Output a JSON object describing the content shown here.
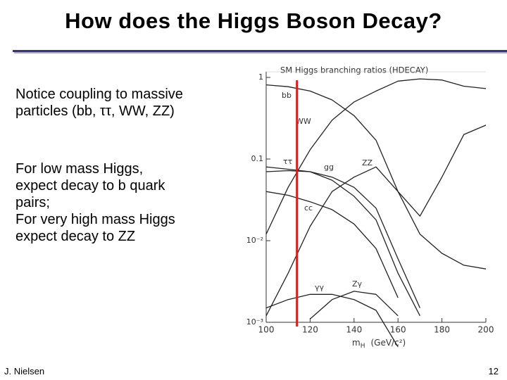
{
  "header": {
    "title": "How does the Higgs Boson Decay?"
  },
  "body": {
    "paragraph_1": [
      "Notice coupling to massive",
      "particles (bb, ττ, WW, ZZ)"
    ],
    "paragraph_2": [
      "For low mass Higgs,",
      "expect decay to b quark",
      "pairs;",
      "For very high mass Higgs",
      "expect decay to ZZ"
    ]
  },
  "chart_data": {
    "type": "line",
    "title": "SM Higgs branching ratios (HDECAY)",
    "x_label": "m",
    "x_label_sub": "H",
    "x_unit": "(GeV/c²)",
    "log_y": true,
    "x": [
      100,
      110,
      120,
      130,
      140,
      150,
      160,
      170,
      180,
      190,
      200
    ],
    "xlim": [
      100,
      200
    ],
    "xticks": [
      100,
      120,
      140,
      160,
      180,
      200
    ],
    "ylim": [
      0.001,
      1
    ],
    "yticks": [
      {
        "value": 1,
        "label": "1"
      },
      {
        "value": 0.1,
        "label": "0.1"
      },
      {
        "value": 0.01,
        "label": "10⁻²"
      },
      {
        "value": 0.001,
        "label": "10⁻³"
      }
    ],
    "reference_line": {
      "x": 114,
      "color": "#d42020"
    },
    "series": [
      {
        "name": "bb",
        "color": "#222",
        "values": [
          0.81,
          0.77,
          0.68,
          0.53,
          0.34,
          0.17,
          0.04,
          0.012,
          0.007,
          0.005,
          0.0045
        ]
      },
      {
        "name": "WW",
        "color": "#222",
        "values": [
          0.012,
          0.045,
          0.13,
          0.3,
          0.5,
          0.68,
          0.9,
          0.96,
          0.93,
          0.78,
          0.73
        ]
      },
      {
        "name": "ττ",
        "color": "#222",
        "values": [
          0.08,
          0.075,
          0.07,
          0.055,
          0.035,
          0.018,
          0.004,
          0.0012,
          null,
          null,
          null
        ]
      },
      {
        "name": "gg",
        "color": "#222",
        "values": [
          0.07,
          0.072,
          0.07,
          0.06,
          0.045,
          0.025,
          0.006,
          0.0015,
          null,
          null,
          null
        ]
      },
      {
        "name": "ZZ",
        "color": "#222",
        "values": [
          0.0012,
          0.004,
          0.015,
          0.04,
          0.06,
          0.08,
          0.04,
          0.02,
          0.06,
          0.2,
          0.26
        ]
      },
      {
        "name": "cc",
        "color": "#222",
        "values": [
          0.04,
          0.036,
          0.03,
          0.024,
          0.016,
          0.008,
          0.002,
          null,
          null,
          null,
          null
        ]
      },
      {
        "name": "γγ",
        "color": "#222",
        "values": [
          0.0015,
          0.0019,
          0.0022,
          0.0022,
          0.0019,
          0.0014,
          0.0005,
          null,
          null,
          null,
          null
        ]
      },
      {
        "name": "Zγ",
        "color": "#222",
        "values": [
          null,
          null,
          0.0011,
          0.0019,
          0.0024,
          0.0022,
          0.0012,
          null,
          null,
          null,
          null
        ]
      }
    ]
  },
  "footer": {
    "author": "J. Nielsen",
    "page": "12"
  }
}
